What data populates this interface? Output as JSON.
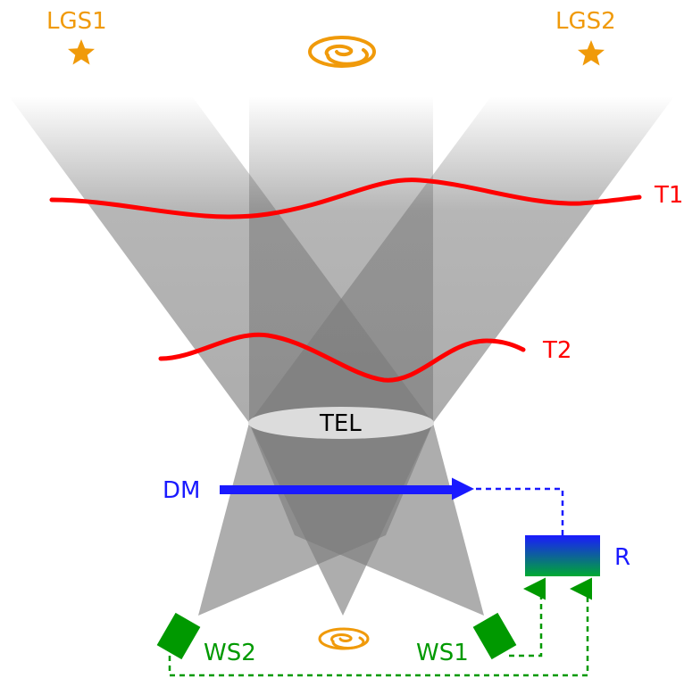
{
  "labels": {
    "lgs1": "LGS1",
    "lgs2": "LGS2",
    "t1": "T1",
    "t2": "T2",
    "tel": "TEL",
    "dm": "DM",
    "r": "R",
    "ws1": "WS1",
    "ws2": "WS2"
  },
  "colors": {
    "star": "#f09a0a",
    "turbulence": "#ff0000",
    "dm": "#1a1aff",
    "sensor": "#009900",
    "loop": "#009900",
    "feedback": "#1a1aff",
    "beam": "#7a7a7a",
    "telescope": "#dcdcdc",
    "reconstructor_top": "#1a1aff",
    "reconstructor_bottom": "#009933"
  }
}
